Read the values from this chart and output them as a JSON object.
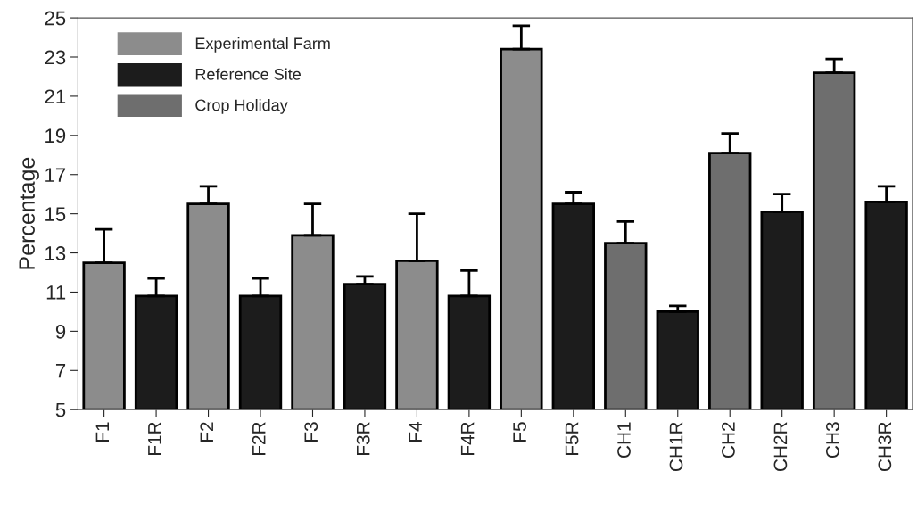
{
  "chart_data": {
    "type": "bar",
    "ylabel": "Percentage",
    "categories": [
      "F1",
      "F1R",
      "F2",
      "F2R",
      "F3",
      "F3R",
      "F4",
      "F4R",
      "F5",
      "F5R",
      "CH1",
      "CH1R",
      "CH2",
      "CH2R",
      "CH3",
      "CH3R"
    ],
    "series": [
      {
        "name": "Experimental Farm",
        "color": "#8c8c8c",
        "values": [
          12.5,
          null,
          15.5,
          null,
          13.9,
          null,
          12.6,
          null,
          23.4,
          null,
          null,
          null,
          null,
          null,
          null,
          null
        ],
        "errors": [
          1.7,
          null,
          0.9,
          null,
          1.6,
          null,
          2.4,
          null,
          1.2,
          null,
          null,
          null,
          null,
          null,
          null,
          null
        ]
      },
      {
        "name": "Reference Site",
        "color": "#1c1c1c",
        "values": [
          null,
          10.8,
          null,
          10.8,
          null,
          11.4,
          null,
          10.8,
          null,
          15.5,
          null,
          10.0,
          null,
          15.1,
          null,
          15.6
        ],
        "errors": [
          null,
          0.9,
          null,
          0.9,
          null,
          0.4,
          null,
          1.3,
          null,
          0.6,
          null,
          0.3,
          null,
          0.9,
          null,
          0.8
        ]
      },
      {
        "name": "Crop Holiday",
        "color": "#6e6e6e",
        "values": [
          null,
          null,
          null,
          null,
          null,
          null,
          null,
          null,
          null,
          null,
          13.5,
          null,
          18.1,
          null,
          22.2,
          null
        ],
        "errors": [
          null,
          null,
          null,
          null,
          null,
          null,
          null,
          null,
          null,
          null,
          1.1,
          null,
          1.0,
          null,
          0.7,
          null
        ]
      }
    ],
    "ylim": [
      5,
      25
    ],
    "yticks": [
      5,
      7,
      9,
      11,
      13,
      15,
      17,
      19,
      21,
      23,
      25
    ],
    "grid": false,
    "legend": "top left"
  }
}
